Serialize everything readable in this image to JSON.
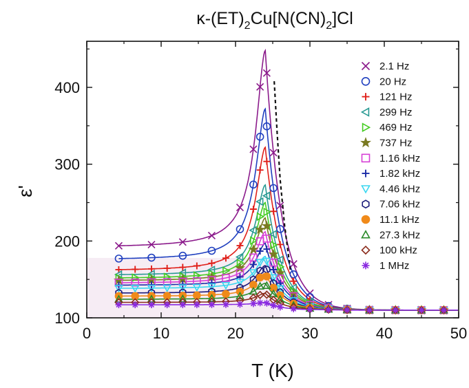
{
  "chart_data": {
    "type": "line",
    "title_main": "κ-(ET)",
    "title_sub1": "2",
    "title_mid": "Cu[N(CN)",
    "title_sub2": "2",
    "title_end": "]Cl",
    "xlabel": "T (K)",
    "ylabel": "ε'",
    "xlim": [
      0,
      50
    ],
    "ylim": [
      100,
      460
    ],
    "xticks": [
      0,
      10,
      20,
      30,
      40,
      50
    ],
    "yticks": [
      100,
      200,
      300,
      400
    ],
    "grid": false,
    "legend_position": "top-right",
    "shaded_region": {
      "x": [
        0,
        26
      ],
      "y_top": 178,
      "color": "#f6ecf4"
    },
    "dashed_line": {
      "points": [
        [
          25.2,
          408
        ],
        [
          25.6,
          340
        ],
        [
          26.0,
          280
        ],
        [
          26.6,
          220
        ],
        [
          27.4,
          160
        ]
      ],
      "color": "#111111"
    },
    "series": [
      {
        "name": "2.1 Hz",
        "marker": "x",
        "color": "#8b1a8b",
        "base": 191,
        "peak": 448,
        "mi": 2
      },
      {
        "name": "20 Hz",
        "marker": "o",
        "color": "#1f3fbf",
        "base": 175,
        "peak": 372,
        "mi": 2
      },
      {
        "name": "121 Hz",
        "marker": "+",
        "color": "#e0201a",
        "base": 161,
        "peak": 322,
        "mi": 1
      },
      {
        "name": "299 Hz",
        "marker": "tri-left",
        "color": "#2a9a93",
        "base": 155,
        "peak": 273,
        "mi": 2
      },
      {
        "name": "469 Hz",
        "marker": "tri-right",
        "color": "#44cc22",
        "base": 151,
        "peak": 250,
        "mi": 1
      },
      {
        "name": "737 Hz",
        "marker": "star",
        "color": "#7a7a22",
        "base": 148,
        "peak": 230,
        "mi": 2
      },
      {
        "name": "1.16 kHz",
        "marker": "square",
        "color": "#d63fd6",
        "base": 145,
        "peak": 212,
        "mi": 1
      },
      {
        "name": "1.82 kHz",
        "marker": "+",
        "color": "#1a2aa6",
        "base": 142,
        "peak": 197,
        "mi": 2
      },
      {
        "name": "4.46 kHz",
        "marker": "tri-down",
        "color": "#3ad7f0",
        "base": 138,
        "peak": 180,
        "mi": 1
      },
      {
        "name": "7.06 kHz",
        "marker": "hexagon",
        "color": "#1a1a7a",
        "base": 132,
        "peak": 168,
        "mi": 2
      },
      {
        "name": "11.1 kHz",
        "marker": "filled-circle",
        "color": "#f08a1a",
        "base": 128,
        "peak": 158,
        "mi": 1
      },
      {
        "name": "27.3 kHz",
        "marker": "tri-up",
        "color": "#2a8a2a",
        "base": 124,
        "peak": 145,
        "mi": 2
      },
      {
        "name": "100 kHz",
        "marker": "diamond",
        "color": "#8a2a1a",
        "base": 120,
        "peak": 132,
        "mi": 1
      },
      {
        "name": "1 MHz",
        "marker": "asterisk",
        "color": "#8a2ae0",
        "base": 117,
        "peak": 120,
        "mi": 1
      }
    ]
  }
}
